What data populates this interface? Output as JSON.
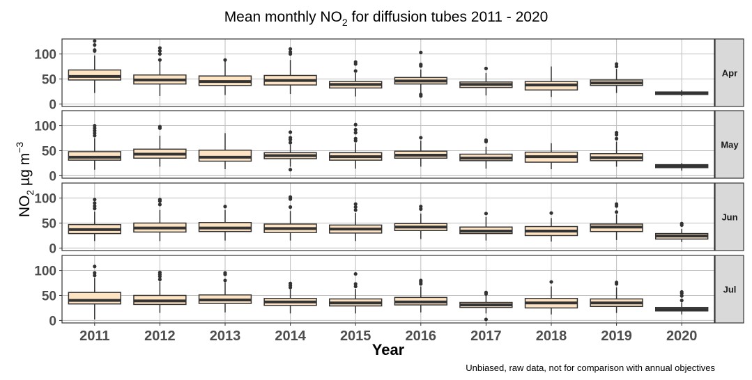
{
  "chart_data": {
    "type": "boxplot",
    "title": "Mean monthly NO",
    "title_subscript": "2",
    "title_suffix": " for diffusion tubes 2011 - 2020",
    "xlabel": "Year",
    "ylabel": {
      "base": "NO",
      "sub": "2",
      "unit": " µg m",
      "sup": "−3"
    },
    "caption": "Unbiased, raw data, not for comparison with annual objectives",
    "categories": [
      "2011",
      "2012",
      "2013",
      "2014",
      "2015",
      "2016",
      "2017",
      "2018",
      "2019",
      "2020"
    ],
    "y_ticks": [
      0,
      50,
      100
    ],
    "ylim": [
      -5,
      130
    ],
    "grid": true,
    "box_fill": "#FFE4C4",
    "box_stroke": "#333333",
    "strip_fill": "#D9D9D9",
    "facets": [
      {
        "label": "Apr",
        "boxes": [
          {
            "min": 22,
            "q1": 48,
            "median": 55,
            "q3": 68,
            "max": 97,
            "outliers": [
              106,
              108,
              118,
              126
            ]
          },
          {
            "min": 16,
            "q1": 40,
            "median": 48,
            "q3": 58,
            "max": 87,
            "outliers": [
              88,
              100,
              106,
              112
            ]
          },
          {
            "min": 18,
            "q1": 37,
            "median": 45,
            "q3": 56,
            "max": 86,
            "outliers": [
              88
            ]
          },
          {
            "min": 20,
            "q1": 38,
            "median": 47,
            "q3": 57,
            "max": 88,
            "outliers": [
              100,
              104,
              110
            ]
          },
          {
            "min": 15,
            "q1": 32,
            "median": 39,
            "q3": 45,
            "max": 62,
            "outliers": [
              66,
              80,
              84
            ]
          },
          {
            "min": 22,
            "q1": 40,
            "median": 46,
            "q3": 53,
            "max": 69,
            "outliers": [
              16,
              19,
              76,
              79,
              103
            ]
          },
          {
            "min": 17,
            "q1": 33,
            "median": 39,
            "q3": 44,
            "max": 62,
            "outliers": [
              71
            ]
          },
          {
            "min": 14,
            "q1": 28,
            "median": 38,
            "q3": 45,
            "max": 75,
            "outliers": []
          },
          {
            "min": 22,
            "q1": 37,
            "median": 42,
            "q3": 48,
            "max": 70,
            "outliers": [
              75,
              80
            ]
          },
          {
            "min": 16,
            "q1": 19,
            "median": 21,
            "q3": 24,
            "max": 28,
            "outliers": []
          }
        ]
      },
      {
        "label": "May",
        "boxes": [
          {
            "min": 12,
            "q1": 31,
            "median": 37,
            "q3": 48,
            "max": 75,
            "outliers": [
              80,
              85,
              90,
              95,
              100
            ]
          },
          {
            "min": 18,
            "q1": 35,
            "median": 43,
            "q3": 53,
            "max": 80,
            "outliers": [
              95,
              98
            ]
          },
          {
            "min": 13,
            "q1": 29,
            "median": 37,
            "q3": 51,
            "max": 85,
            "outliers": []
          },
          {
            "min": 18,
            "q1": 34,
            "median": 40,
            "q3": 46,
            "max": 62,
            "outliers": [
              12,
              66,
              72,
              76,
              87
            ]
          },
          {
            "min": 14,
            "q1": 31,
            "median": 38,
            "q3": 46,
            "max": 65,
            "outliers": [
              70,
              74,
              86,
              92,
              102
            ]
          },
          {
            "min": 18,
            "q1": 35,
            "median": 41,
            "q3": 49,
            "max": 70,
            "outliers": [
              76
            ]
          },
          {
            "min": 14,
            "q1": 30,
            "median": 35,
            "q3": 43,
            "max": 58,
            "outliers": [
              68,
              71
            ]
          },
          {
            "min": 13,
            "q1": 27,
            "median": 38,
            "q3": 47,
            "max": 65,
            "outliers": []
          },
          {
            "min": 18,
            "q1": 30,
            "median": 36,
            "q3": 44,
            "max": 68,
            "outliers": [
              74,
              82,
              86
            ]
          },
          {
            "min": 10,
            "q1": 16,
            "median": 19,
            "q3": 22,
            "max": 25,
            "outliers": []
          }
        ]
      },
      {
        "label": "Jun",
        "boxes": [
          {
            "min": 14,
            "q1": 29,
            "median": 37,
            "q3": 47,
            "max": 73,
            "outliers": [
              79,
              84,
              90,
              97
            ]
          },
          {
            "min": 14,
            "q1": 32,
            "median": 40,
            "q3": 50,
            "max": 76,
            "outliers": [
              87,
              94,
              97
            ]
          },
          {
            "min": 15,
            "q1": 33,
            "median": 40,
            "q3": 51,
            "max": 76,
            "outliers": [
              83
            ]
          },
          {
            "min": 15,
            "q1": 31,
            "median": 39,
            "q3": 48,
            "max": 74,
            "outliers": [
              82,
              98,
              102
            ]
          },
          {
            "min": 14,
            "q1": 30,
            "median": 38,
            "q3": 46,
            "max": 70,
            "outliers": [
              76,
              82,
              88
            ]
          },
          {
            "min": 18,
            "q1": 35,
            "median": 42,
            "q3": 49,
            "max": 69,
            "outliers": [
              78,
              83
            ]
          },
          {
            "min": 15,
            "q1": 29,
            "median": 34,
            "q3": 42,
            "max": 62,
            "outliers": [
              69
            ]
          },
          {
            "min": 13,
            "q1": 25,
            "median": 34,
            "q3": 43,
            "max": 60,
            "outliers": [
              70
            ]
          },
          {
            "min": 16,
            "q1": 33,
            "median": 42,
            "q3": 48,
            "max": 67,
            "outliers": [
              72,
              84,
              88
            ]
          },
          {
            "min": 12,
            "q1": 18,
            "median": 24,
            "q3": 29,
            "max": 38,
            "outliers": [
              46,
              49
            ]
          }
        ]
      },
      {
        "label": "Jul",
        "boxes": [
          {
            "min": 2,
            "q1": 33,
            "median": 40,
            "q3": 56,
            "max": 85,
            "outliers": [
              90,
              95,
              108
            ]
          },
          {
            "min": 15,
            "q1": 32,
            "median": 39,
            "q3": 50,
            "max": 78,
            "outliers": [
              82,
              88,
              92,
              96
            ]
          },
          {
            "min": 16,
            "q1": 34,
            "median": 41,
            "q3": 51,
            "max": 76,
            "outliers": [
              80,
              92,
              95
            ]
          },
          {
            "min": 14,
            "q1": 30,
            "median": 37,
            "q3": 44,
            "max": 62,
            "outliers": [
              66,
              70,
              74
            ]
          },
          {
            "min": 14,
            "q1": 29,
            "median": 35,
            "q3": 43,
            "max": 63,
            "outliers": [
              68,
              73,
              93
            ]
          },
          {
            "min": 16,
            "q1": 31,
            "median": 37,
            "q3": 46,
            "max": 68,
            "outliers": [
              73,
              77,
              80
            ]
          },
          {
            "min": 14,
            "q1": 26,
            "median": 31,
            "q3": 36,
            "max": 50,
            "outliers": [
              2,
              53,
              56
            ]
          },
          {
            "min": 12,
            "q1": 25,
            "median": 35,
            "q3": 44,
            "max": 68,
            "outliers": [
              77
            ]
          },
          {
            "min": 15,
            "q1": 28,
            "median": 35,
            "q3": 43,
            "max": 66,
            "outliers": [
              73,
              76
            ]
          },
          {
            "min": 12,
            "q1": 19,
            "median": 22,
            "q3": 26,
            "max": 36,
            "outliers": [
              40,
              49,
              54,
              57
            ]
          }
        ]
      }
    ]
  }
}
